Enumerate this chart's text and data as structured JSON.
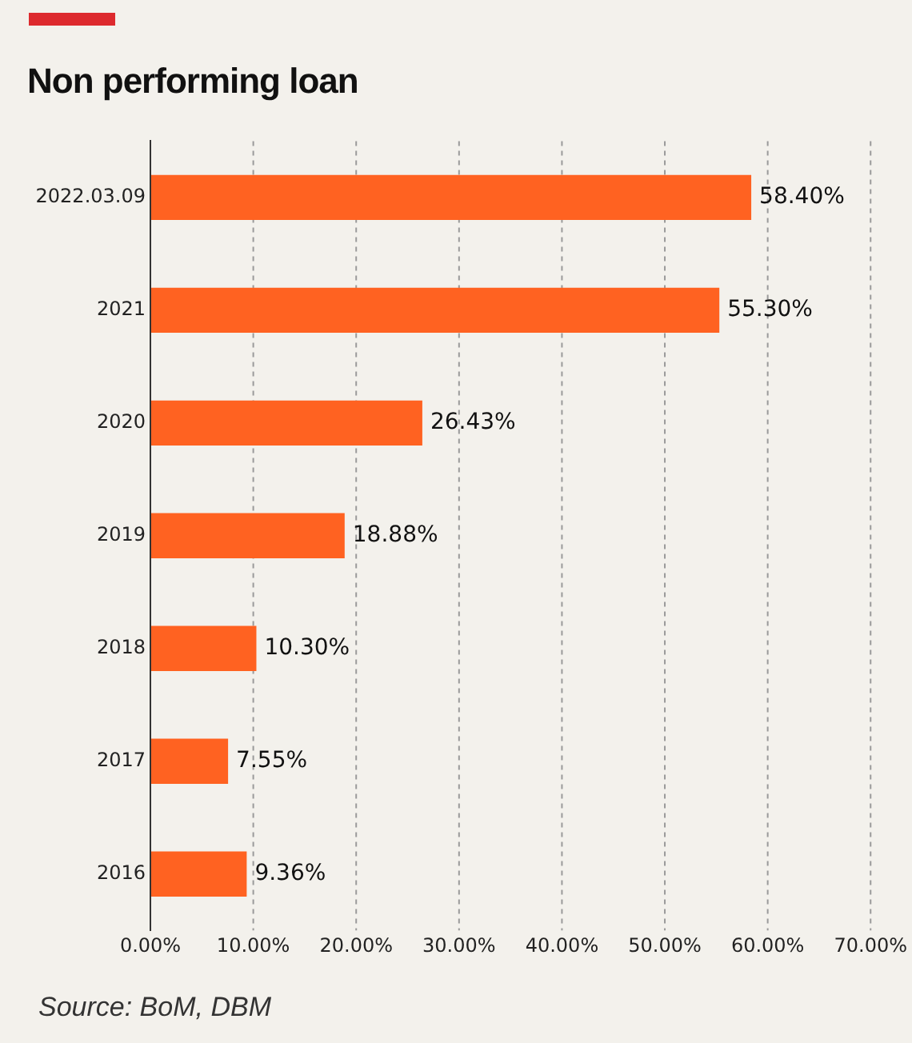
{
  "chart_data": {
    "type": "bar",
    "orientation": "horizontal",
    "title": "Non performing loan",
    "categories": [
      "2022.03.09",
      "2021",
      "2020",
      "2019",
      "2018",
      "2017",
      "2016"
    ],
    "values": [
      58.4,
      55.3,
      26.43,
      18.88,
      10.3,
      7.55,
      9.36
    ],
    "value_labels": [
      "58.40%",
      "55.30%",
      "26.43%",
      "18.88%",
      "10.30%",
      "7.55%",
      "9.36%"
    ],
    "color": "#ff6221",
    "xlim": [
      0,
      70
    ],
    "xticks": [
      {
        "value": 0,
        "label": "0.00%"
      },
      {
        "value": 10,
        "label": "10.00%"
      },
      {
        "value": 20,
        "label": "20.00%"
      },
      {
        "value": 30,
        "label": "30.00%"
      },
      {
        "value": 40,
        "label": "40.00%"
      },
      {
        "value": 50,
        "label": "50.00%"
      },
      {
        "value": 60,
        "label": "60.00%"
      },
      {
        "value": 70,
        "label": "70.00%"
      }
    ],
    "grid": "x",
    "annotations": [
      "Source: BoM, DBM"
    ]
  }
}
